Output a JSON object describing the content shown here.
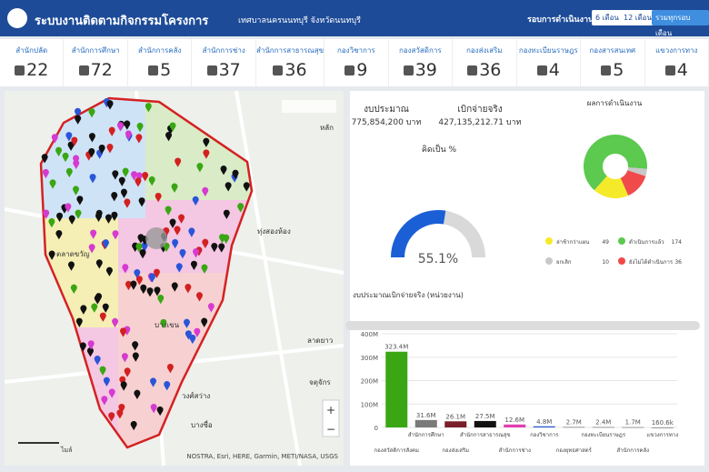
{
  "header": {
    "title": "ระบบงานติดตามกิจกรรมโครงการ",
    "subtitle": "เทศบาลนครนนทบุรี จังหวัดนนทบุรี",
    "round_label": "รอบการดำเนินงาน",
    "buttons": [
      "6 เดือน",
      "12 เดือน",
      "รวมทุกรอบเดือน"
    ]
  },
  "stats": [
    {
      "label": "สำนักปลัด",
      "value": "22"
    },
    {
      "label": "สำนักการศึกษา",
      "value": "72"
    },
    {
      "label": "สำนักการคลัง",
      "value": "5"
    },
    {
      "label": "สำนักการช่าง",
      "value": "37"
    },
    {
      "label": "สำนักการสาธารณสุข",
      "value": "36"
    },
    {
      "label": "กองวิชาการ",
      "value": "9"
    },
    {
      "label": "กองสวัสดิการ",
      "value": "39"
    },
    {
      "label": "กองส่งเสริม",
      "value": "36"
    },
    {
      "label": "กองทะเบียนราษฎร",
      "value": "4"
    },
    {
      "label": "กองสารสนเทศ",
      "value": "5"
    },
    {
      "label": "แขวงการทาง",
      "value": "4"
    }
  ],
  "map": {
    "places": [
      "หลัก",
      "ตลาดขวัญ",
      "ทุ่งสองห้อง",
      "บางเขน",
      "ลาดยาว",
      "จตุจักร",
      "วงศ์สว่าง",
      "บางซื่อ"
    ],
    "attribution": "NOSTRA, Esri, HERE, Garmin, METI/NASA, USGS",
    "scale_label": "ไมล์",
    "zoom": [
      "+",
      "−"
    ]
  },
  "budget": {
    "budget_label": "งบประมาณ",
    "budget_value": "775,854,200 บาท",
    "spent_label": "เบิกจ่ายจริง",
    "spent_value": "427,135,212.71 บาท"
  },
  "chart_data": [
    {
      "type": "gauge",
      "title": "คิดเป็น %",
      "value": 55.1,
      "value_label": "55.1%",
      "ylim": [
        0,
        100
      ],
      "color": "#1a5fd6",
      "track_color": "#d9d9d9"
    },
    {
      "type": "pie",
      "title": "ผลการดำเนินงาน",
      "categories": [
        "ล่าช้ากว่าแผน",
        "ดำเนินการแล้ว",
        "ยกเลิก",
        "ยังไม่ได้ดำเนินการ"
      ],
      "values": [
        49,
        174,
        10,
        36
      ],
      "colors": [
        "#f5ea2a",
        "#5cc94f",
        "#c8c8c8",
        "#f04a4a"
      ]
    },
    {
      "type": "bar",
      "title": "งบประมาณเบิกจ่ายจริง (หน่วยงาน)",
      "categories": [
        "กองสวัสดิการสังคม",
        "สำนักการศึกษา",
        "กองส่งเสริม",
        "สำนักการสาธารณสุข",
        "สำนักการช่าง",
        "กองวิชาการ",
        "กองยุทธศาสตร์",
        "กองทะเบียนราษฎร",
        "สำนักการคลัง",
        "แขวงการทาง"
      ],
      "values": [
        323400000,
        31600000,
        26100000,
        27500000,
        12600000,
        4800000,
        2700000,
        2400000,
        1700000,
        160600
      ],
      "value_labels": [
        "323.4M",
        "31.6M",
        "26.1M",
        "27.5M",
        "12.6M",
        "4.8M",
        "2.7M",
        "2.4M",
        "1.7M",
        "160.6k"
      ],
      "colors": [
        "#3aa613",
        "#7a7a7a",
        "#7a1e2a",
        "#111111",
        "#e23fb0",
        "#2a55d8",
        "#999999",
        "#999999",
        "#999999",
        "#999999"
      ],
      "ylim": [
        0,
        400000000
      ],
      "yticks": [
        {
          "value": 0,
          "label": "0"
        },
        {
          "value": 100000000,
          "label": "100M"
        },
        {
          "value": 200000000,
          "label": "200M"
        },
        {
          "value": 300000000,
          "label": "300M"
        },
        {
          "value": 400000000,
          "label": "400M"
        }
      ]
    }
  ]
}
